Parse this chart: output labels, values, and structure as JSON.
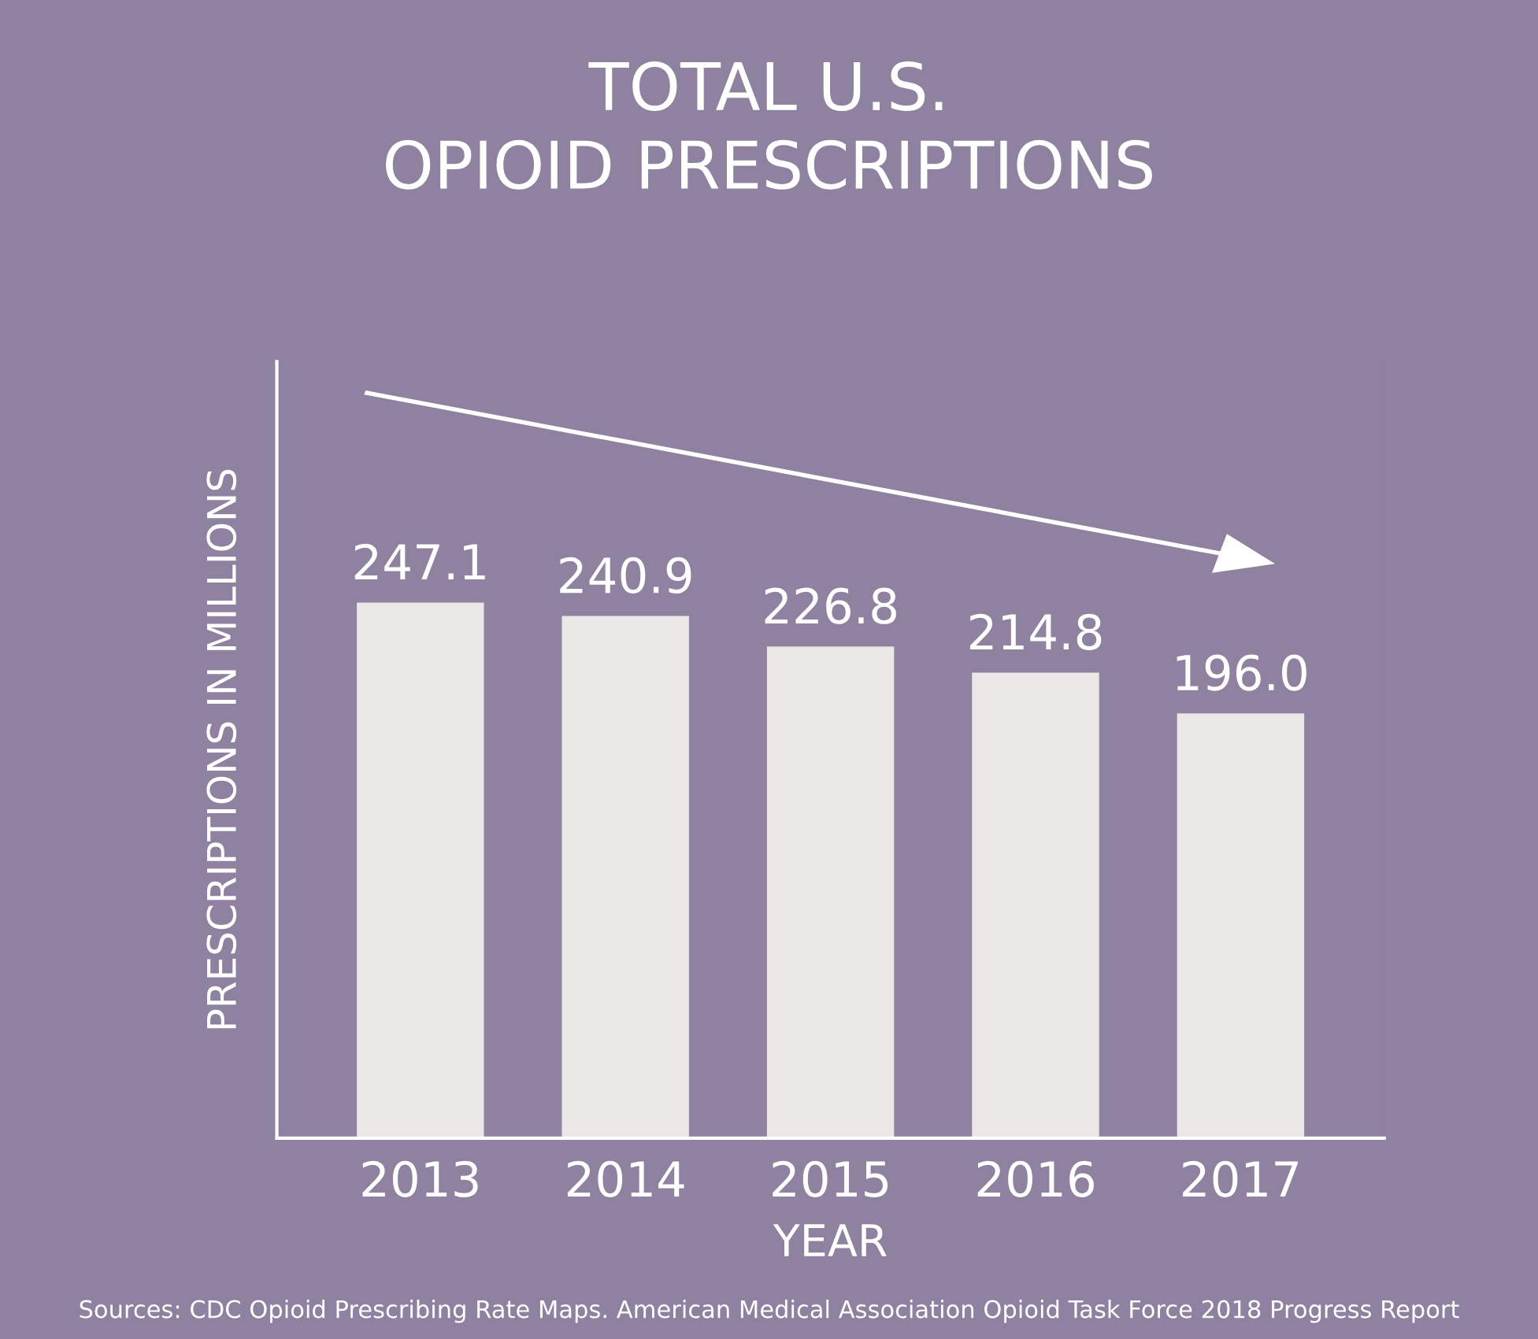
{
  "chart_data": {
    "type": "bar",
    "title": "TOTAL U.S.\nOPIOID PRESCRIPTIONS",
    "xlabel": "YEAR",
    "ylabel": "PRESCRIPTIONS IN MILLIONS",
    "categories": [
      "2013",
      "2014",
      "2015",
      "2016",
      "2017"
    ],
    "values": [
      247.1,
      240.9,
      226.8,
      214.8,
      196.0
    ],
    "value_labels": [
      "247.1",
      "240.9",
      "226.8",
      "214.8",
      "196.0"
    ],
    "color": "#ebe7e6",
    "grid": false,
    "legend": false,
    "annotations": [
      "Sources: CDC Opioid Prescribing Rate Maps. American Medical Association Opioid Task Force 2018 Progress Report"
    ]
  }
}
